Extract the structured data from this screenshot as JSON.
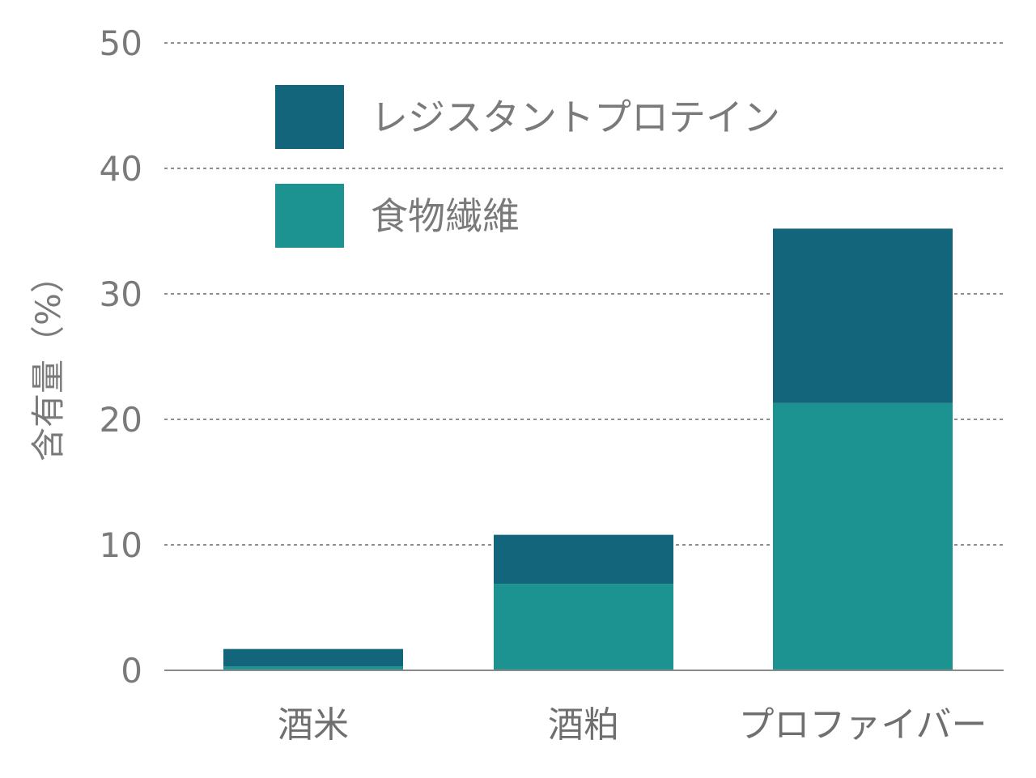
{
  "chart_data": {
    "type": "bar",
    "stacked": true,
    "categories": [
      "酒米",
      "酒粕",
      "プロファイバー"
    ],
    "series": [
      {
        "name": "食物繊維",
        "values": [
          0.3,
          6.9,
          21.3
        ],
        "color": "#1d9391"
      },
      {
        "name": "レジスタントプロテイン",
        "values": [
          1.4,
          3.9,
          13.9
        ],
        "color": "#12657a"
      }
    ],
    "title": "",
    "xlabel": "",
    "ylabel": "含有量（%）",
    "ylim": [
      0,
      50
    ],
    "yticks": [
      0,
      10,
      20,
      30,
      40,
      50
    ],
    "grid": true,
    "grid_style": "dotted",
    "legend_position": "top-left"
  }
}
